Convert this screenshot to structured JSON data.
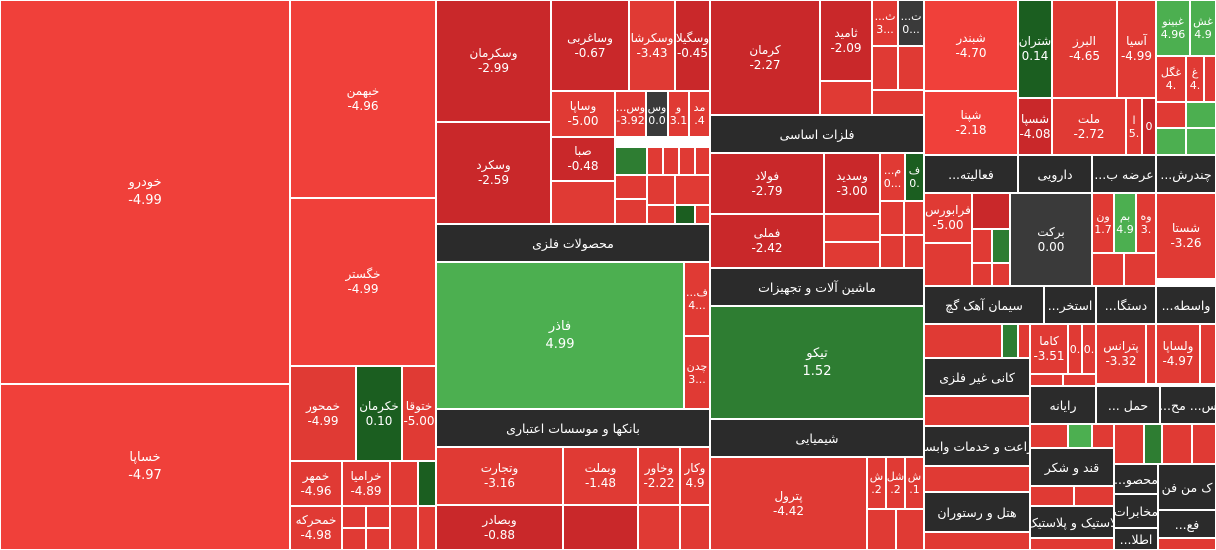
{
  "colors": {
    "red_strong": "#f0403a",
    "red": "#e03a34",
    "red_dark": "#c9282a",
    "green_light": "#4caf50",
    "green_dark": "#2e7d32",
    "green_deep": "#1b5e20",
    "gray": "#3a3a3a",
    "header": "#2b2b2b"
  },
  "tiles": [
    {
      "sym": "خودرو",
      "chg": "-4.99"
    },
    {
      "sym": "خساپا",
      "chg": "-4.97"
    },
    {
      "sym": "خبهمن",
      "chg": "-4.96"
    },
    {
      "sym": "خگستر",
      "chg": "-4.99"
    },
    {
      "sym": "خمحور",
      "chg": "-4.99"
    },
    {
      "sym": "خکرمان",
      "chg": "0.10"
    },
    {
      "sym": "ختوقا",
      "chg": "-5.00"
    },
    {
      "sym": "خمهر",
      "chg": "-4.96"
    },
    {
      "sym": "خراميا",
      "chg": "-4.89"
    },
    {
      "sym": "خمحركه",
      "chg": "-4.98"
    },
    {
      "sym": "وسكرمان",
      "chg": "-2.99"
    },
    {
      "sym": "وساغربی",
      "chg": "-0.67"
    },
    {
      "sym": "وسكرشا",
      "chg": "-3.43"
    },
    {
      "sym": "وسگيلا",
      "chg": "-0.45"
    },
    {
      "sym": "وسكرد",
      "chg": "-2.59"
    },
    {
      "sym": "وساپا",
      "chg": "-5.00"
    },
    {
      "sym": "وس...",
      "chg": "-3.92"
    },
    {
      "sym": "وس",
      "chg": "0.0"
    },
    {
      "sym": "و",
      "chg": "3.1"
    },
    {
      "sym": "مد",
      "chg": ".4"
    },
    {
      "sym": "صبا",
      "chg": "-0.48"
    },
    {
      "sym": "كرمان",
      "chg": "-2.27"
    },
    {
      "sym": "ثاميد",
      "chg": "-2.09"
    },
    {
      "sym": "ث...",
      "chg": "3..."
    },
    {
      "sym": "ت...",
      "chg": "0..."
    },
    {
      "sym": "فولاد",
      "chg": "-2.79"
    },
    {
      "sym": "وسديد",
      "chg": "-3.00"
    },
    {
      "sym": "م...",
      "chg": "0..."
    },
    {
      "sym": "ف",
      "chg": "0."
    },
    {
      "sym": "فملی",
      "chg": "-2.42"
    },
    {
      "sym": "فاذر",
      "chg": "4.99"
    },
    {
      "sym": "ف...",
      "chg": "4..."
    },
    {
      "sym": "چدن",
      "chg": "3..."
    },
    {
      "sym": "تيكو",
      "chg": "1.52"
    },
    {
      "sym": "وتجارت",
      "chg": "-3.16"
    },
    {
      "sym": "وبملت",
      "chg": "-1.48"
    },
    {
      "sym": "وخاور",
      "chg": "-2.22"
    },
    {
      "sym": "وكار",
      "chg": "4.9"
    },
    {
      "sym": "وبصادر",
      "chg": "-0.88"
    },
    {
      "sym": "پترول",
      "chg": "-4.42"
    },
    {
      "sym": "ش",
      "chg": ".2"
    },
    {
      "sym": "شل",
      "chg": ".2"
    },
    {
      "sym": "ش",
      "chg": ".1"
    },
    {
      "sym": "شبندر",
      "chg": "-4.70"
    },
    {
      "sym": "شتران",
      "chg": "0.14"
    },
    {
      "sym": "البرز",
      "chg": "-4.65"
    },
    {
      "sym": "آسيا",
      "chg": "-4.99"
    },
    {
      "sym": "غبينو",
      "chg": "4.96"
    },
    {
      "sym": "غش",
      "chg": "4.9"
    },
    {
      "sym": "غگل",
      "chg": "4."
    },
    {
      "sym": "غ",
      "chg": "4."
    },
    {
      "sym": "شپنا",
      "chg": "-2.18"
    },
    {
      "sym": "شسپا",
      "chg": "-4.08"
    },
    {
      "sym": "ملت",
      "chg": "-2.72"
    },
    {
      "sym": "ا",
      "chg": "5."
    },
    {
      "sym": "",
      "chg": "0"
    },
    {
      "sym": "فرابورس",
      "chg": "-5.00"
    },
    {
      "sym": "بركت",
      "chg": "0.00"
    },
    {
      "sym": "ون",
      "chg": "1.7"
    },
    {
      "sym": "بم",
      "chg": "4.9"
    },
    {
      "sym": "وه",
      "chg": "3."
    },
    {
      "sym": "شستا",
      "chg": "-3.26"
    },
    {
      "sym": "كاما",
      "chg": "-3.51"
    },
    {
      "sym": "",
      "chg": "0."
    },
    {
      "sym": "",
      "chg": "0."
    },
    {
      "sym": "پترانس",
      "chg": "-3.32"
    },
    {
      "sym": "ولساپا",
      "chg": "-4.97"
    }
  ],
  "sectors": [
    "محصولات فلزی",
    "فلزات اساسی",
    "ماشين آلات و تجهيزات",
    "بانكها و موسسات اعتباری",
    "شيميايی",
    "فعاليته...",
    "دارويی",
    "عرضه ب...",
    "چندرش...",
    "سيمان آهک گچ",
    "استخر...",
    "دستگا...",
    "واسطه...",
    "كانی غير فلزی",
    "رايانه",
    "حمل ...",
    "س... مح...",
    "زراعت و خدمات وابسته",
    "قند و شكر",
    "محصو...",
    "ک من فن",
    "هتل و رستوران",
    "لاستیک و پلاستیک",
    "مخابرات",
    "فع...",
    "اطلا..."
  ]
}
